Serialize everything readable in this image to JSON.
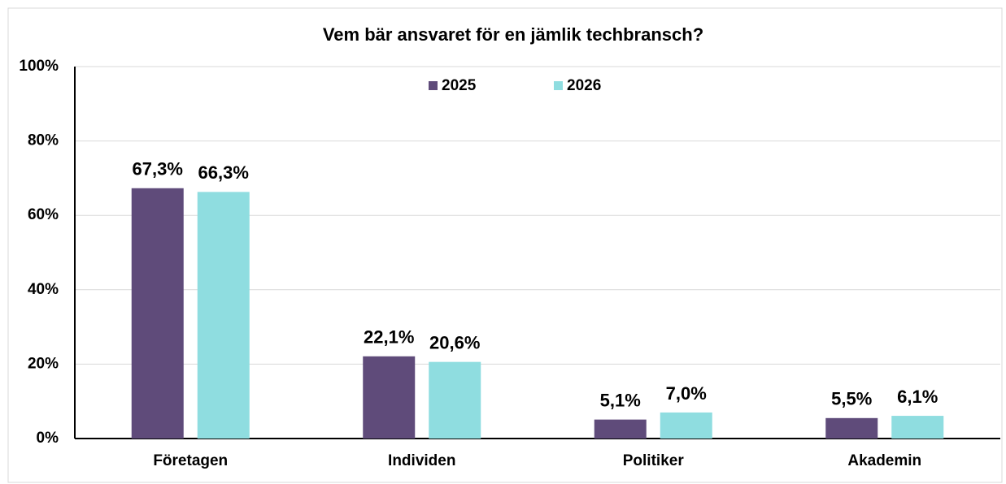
{
  "chart_data": {
    "type": "bar",
    "title": "Vem bär ansvaret för en jämlik techbransch?",
    "categories": [
      "Företagen",
      "Individen",
      "Politiker",
      "Akademin"
    ],
    "series": [
      {
        "name": "2025",
        "color": "#5f4b7a",
        "values": [
          67.3,
          22.1,
          5.1,
          5.5
        ],
        "value_labels": [
          "67,3%",
          "22,1%",
          "5,1%",
          "5,5%"
        ]
      },
      {
        "name": "2026",
        "color": "#8fdde0",
        "values": [
          66.3,
          20.6,
          7.0,
          6.1
        ],
        "value_labels": [
          "66,3%",
          "20,6%",
          "7,0%",
          "6,1%"
        ]
      }
    ],
    "ylim": [
      0,
      100
    ],
    "yticks": [
      {
        "value": 0,
        "label": "0%"
      },
      {
        "value": 20,
        "label": "20%"
      },
      {
        "value": 40,
        "label": "40%"
      },
      {
        "value": 60,
        "label": "60%"
      },
      {
        "value": 80,
        "label": "80%"
      },
      {
        "value": 100,
        "label": "100%"
      }
    ],
    "grid": true,
    "legend": "top"
  }
}
